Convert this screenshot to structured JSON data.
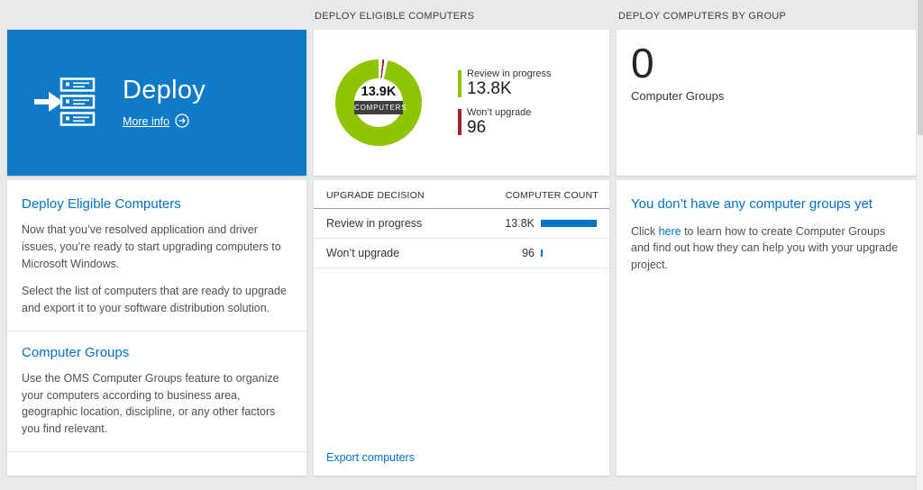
{
  "colors": {
    "accent_blue": "#0072c6",
    "tile_blue": "#0f7ac6",
    "green": "#8ec402",
    "red": "#a0212d",
    "center_band": "#3f3f3f"
  },
  "headers": {
    "middle": "DEPLOY ELIGIBLE COMPUTERS",
    "right": "DEPLOY COMPUTERS BY GROUP"
  },
  "deploy_tile": {
    "title": "Deploy",
    "more_info_label": "More info"
  },
  "left_panel": {
    "section1": {
      "title": "Deploy Eligible Computers",
      "p1": "Now that you’ve resolved application and driver issues, you’re ready to start upgrading computers to Microsoft Windows.",
      "p2": "Select the list of computers that are ready to upgrade and export it to your software distribution solution."
    },
    "section2": {
      "title": "Computer Groups",
      "p1": "Use the OMS Computer Groups feature to organize your computers according to business area, geographic location, discipline, or any other factors you find relevant."
    }
  },
  "chart_data": {
    "type": "pie",
    "title": "DEPLOY ELIGIBLE COMPUTERS",
    "center_value": "13.9K",
    "center_label": "COMPUTERS",
    "legend_position": "right",
    "slices": [
      {
        "label": "Review in progress",
        "value": 13800,
        "display": "13.8K",
        "color": "#8ec402"
      },
      {
        "label": "Won’t upgrade",
        "value": 96,
        "display": "96",
        "color": "#a0212d"
      }
    ]
  },
  "table": {
    "col1": "UPGRADE DECISION",
    "col2": "COMPUTER COUNT",
    "rows": [
      {
        "decision": "Review in progress",
        "display": "13.8K",
        "value": 13800
      },
      {
        "decision": "Won’t upgrade",
        "display": "96",
        "value": 96
      }
    ],
    "export_label": "Export computers"
  },
  "groups_tile": {
    "count": "0",
    "label": "Computer Groups"
  },
  "groups_panel": {
    "title": "You don’t have any computer groups yet",
    "before_link": "Click ",
    "link_label": "here",
    "after_link": " to learn how to create Computer Groups and find out how they can help you with your upgrade project."
  }
}
